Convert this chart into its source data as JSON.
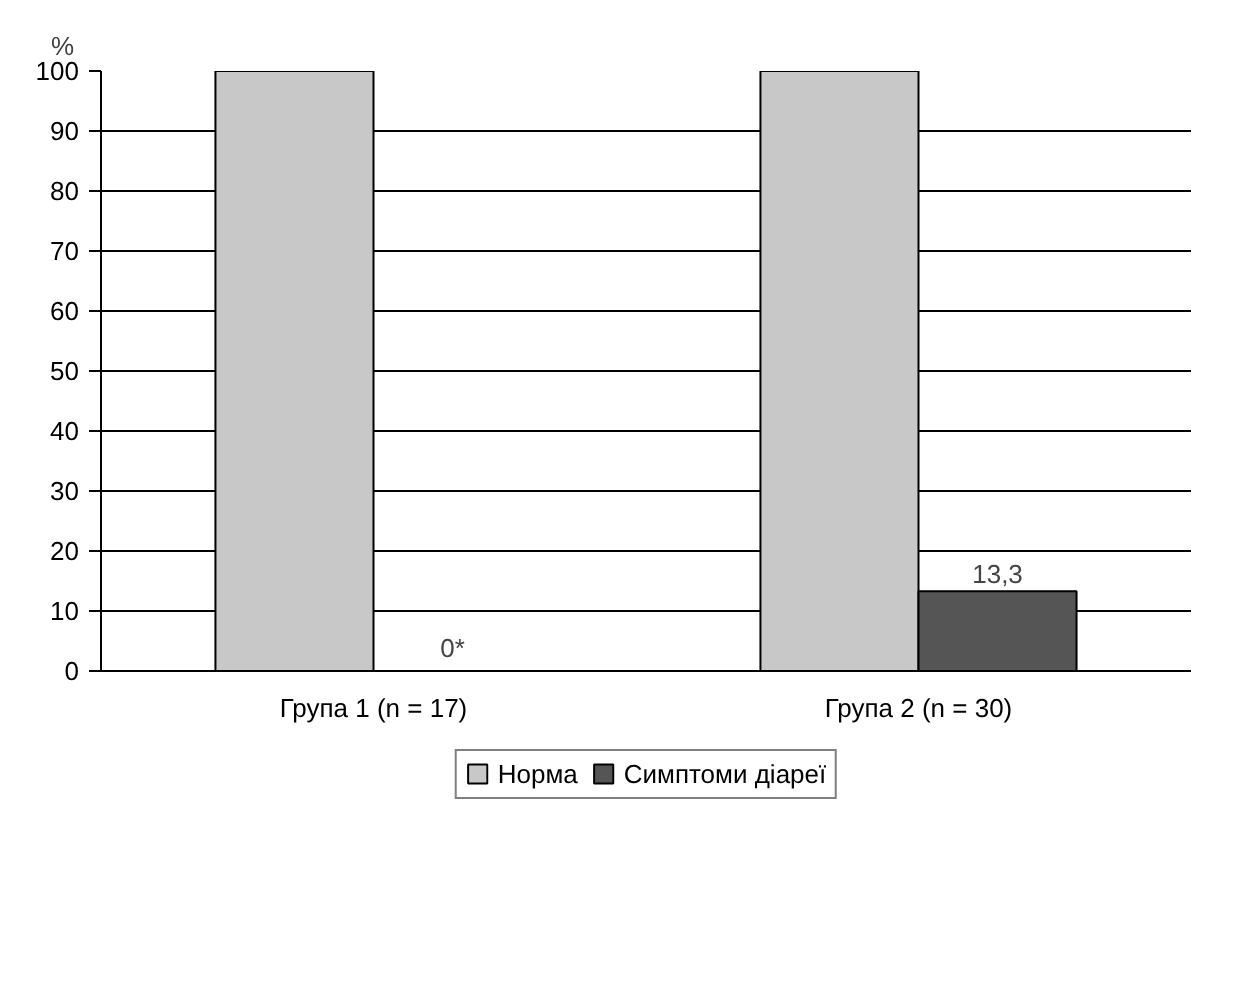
{
  "chart_data": {
    "type": "bar",
    "ylabel": "%",
    "categories": [
      "Група 1 (n = 17)",
      "Група 2 (n = 30)"
    ],
    "series": [
      {
        "name": "Норма",
        "color": "#c8c8c8",
        "values": [
          100,
          100
        ]
      },
      {
        "name": "Симптоми діареї",
        "color": "#555555",
        "values": [
          0,
          13.3
        ],
        "value_labels": [
          "0*",
          "13,3"
        ]
      }
    ],
    "ylim": [
      0,
      100
    ],
    "yticks": [
      0,
      10,
      20,
      30,
      40,
      50,
      60,
      70,
      80,
      90,
      100
    ],
    "grid": "y",
    "legend": "bottom"
  }
}
